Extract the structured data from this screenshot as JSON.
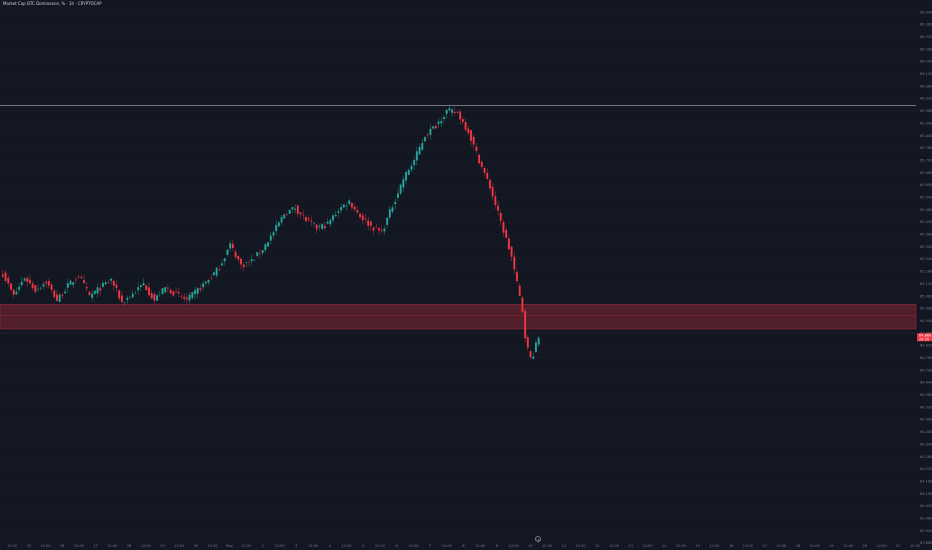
{
  "header": {
    "title": "Market Cap BTC Dominance, % · 1h · CRYPTOCAP"
  },
  "chart_data": {
    "type": "candlestick",
    "price_axis": {
      "range": [
        63.86,
        66.46
      ],
      "ticks": [
        "66.440",
        "66.380",
        "66.320",
        "66.260",
        "66.200",
        "66.140",
        "66.080",
        "66.020",
        "65.960",
        "65.900",
        "65.840",
        "65.780",
        "65.720",
        "65.660",
        "65.600",
        "65.540",
        "65.480",
        "65.420",
        "65.360",
        "65.300",
        "65.240",
        "65.180",
        "65.120",
        "65.060",
        "65.000",
        "64.940",
        "64.880",
        "64.820",
        "64.760",
        "64.700",
        "64.640",
        "64.580",
        "64.520",
        "64.460",
        "64.400",
        "64.340",
        "64.280",
        "64.220",
        "64.160",
        "64.100",
        "64.040",
        "63.980",
        "63.920",
        "63.860"
      ]
    },
    "time_axis": {
      "labels": [
        "12:00",
        "25",
        "12:00",
        "26",
        "12:00",
        "27",
        "12:00",
        "28",
        "12:00",
        "29",
        "12:00",
        "30",
        "12:00",
        "May",
        "12:00",
        "2",
        "12:00",
        "3",
        "12:00",
        "4",
        "12:00",
        "5",
        "12:00",
        "6",
        "12:00",
        "7",
        "12:00",
        "8",
        "12:00",
        "9",
        "12:00",
        "10",
        "12:00",
        "11",
        "12:00",
        "12",
        "12:00",
        "13",
        "12:00",
        "14",
        "12:00",
        "15",
        "12:00",
        "16",
        "12:00",
        "17",
        "12:00",
        "18",
        "12:00",
        "19",
        "12:00",
        "20",
        "12:00",
        "21",
        "12:00"
      ]
    },
    "horizontal_line": {
      "price": 65.985,
      "color": "#d1d4dc"
    },
    "zone": {
      "top": 65.02,
      "bottom": 64.9,
      "mid": 64.965,
      "color": "#f23645"
    },
    "reference_line": {
      "price": 64.88
    },
    "last_price": {
      "value": "64.860",
      "time": "26:35",
      "color": "#f23645"
    },
    "colors": {
      "up": "#26a69a",
      "down": "#f23645",
      "background": "#131722",
      "grid": "#1e222d"
    },
    "anchors": [
      [
        0,
        65.17
      ],
      [
        4,
        65.06
      ],
      [
        8,
        65.15
      ],
      [
        12,
        65.09
      ],
      [
        16,
        65.13
      ],
      [
        20,
        65.04
      ],
      [
        24,
        65.11
      ],
      [
        28,
        65.16
      ],
      [
        32,
        65.06
      ],
      [
        36,
        65.1
      ],
      [
        40,
        65.14
      ],
      [
        44,
        65.03
      ],
      [
        48,
        65.07
      ],
      [
        52,
        65.12
      ],
      [
        56,
        65.04
      ],
      [
        60,
        65.1
      ],
      [
        64,
        65.07
      ],
      [
        68,
        65.04
      ],
      [
        72,
        65.09
      ],
      [
        76,
        65.14
      ],
      [
        80,
        65.2
      ],
      [
        84,
        65.31
      ],
      [
        88,
        65.21
      ],
      [
        92,
        65.23
      ],
      [
        96,
        65.29
      ],
      [
        100,
        65.37
      ],
      [
        104,
        65.46
      ],
      [
        108,
        65.49
      ],
      [
        112,
        65.43
      ],
      [
        116,
        65.39
      ],
      [
        120,
        65.41
      ],
      [
        124,
        65.48
      ],
      [
        128,
        65.52
      ],
      [
        132,
        65.45
      ],
      [
        136,
        65.4
      ],
      [
        140,
        65.37
      ],
      [
        144,
        65.5
      ],
      [
        148,
        65.63
      ],
      [
        152,
        65.72
      ],
      [
        156,
        65.84
      ],
      [
        160,
        65.89
      ],
      [
        164,
        65.96
      ],
      [
        168,
        65.95
      ],
      [
        172,
        65.86
      ],
      [
        176,
        65.72
      ],
      [
        180,
        65.59
      ],
      [
        184,
        65.42
      ],
      [
        188,
        65.25
      ],
      [
        190,
        65.12
      ],
      [
        192,
        64.99
      ],
      [
        193,
        64.87
      ],
      [
        194,
        64.8
      ],
      [
        195,
        64.76
      ],
      [
        196,
        64.78
      ],
      [
        198,
        64.86
      ]
    ]
  }
}
